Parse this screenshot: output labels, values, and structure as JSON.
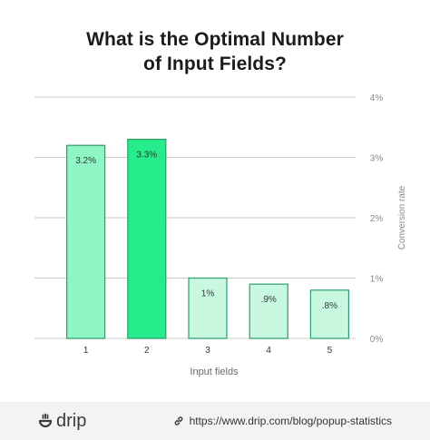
{
  "chart_data": {
    "type": "bar",
    "title_lines": [
      "What is the Optimal Number",
      "of Input Fields?"
    ],
    "xlabel": "Input fields",
    "ylabel": "Conversion rate",
    "categories": [
      "1",
      "2",
      "3",
      "4",
      "5"
    ],
    "values": [
      3.2,
      3.3,
      1.0,
      0.9,
      0.8
    ],
    "data_labels": [
      "3.2%",
      "3.3%",
      "1%",
      ".9%",
      ".8%"
    ],
    "y_ticks": [
      0,
      1,
      2,
      3,
      4
    ],
    "y_tick_labels": [
      "0%",
      "1%",
      "2%",
      "3%",
      "4%"
    ],
    "ylim": [
      0,
      4
    ],
    "y_axis_side": "right",
    "grid": true,
    "highlight_index": 1,
    "colors": {
      "bar_high": "#8ef5c4",
      "bar_high_highlight": "#27ec8b",
      "bar_low": "#c9f8e1",
      "bar_stroke": "#2a9d6a",
      "grid": "#c9c9c9",
      "tick_text": "#8a8a8a"
    }
  },
  "footer": {
    "brand": "drip",
    "brand_icon": "drip-logo-icon",
    "link_icon": "link-icon",
    "url": "https://www.drip.com/blog/popup-statistics"
  }
}
